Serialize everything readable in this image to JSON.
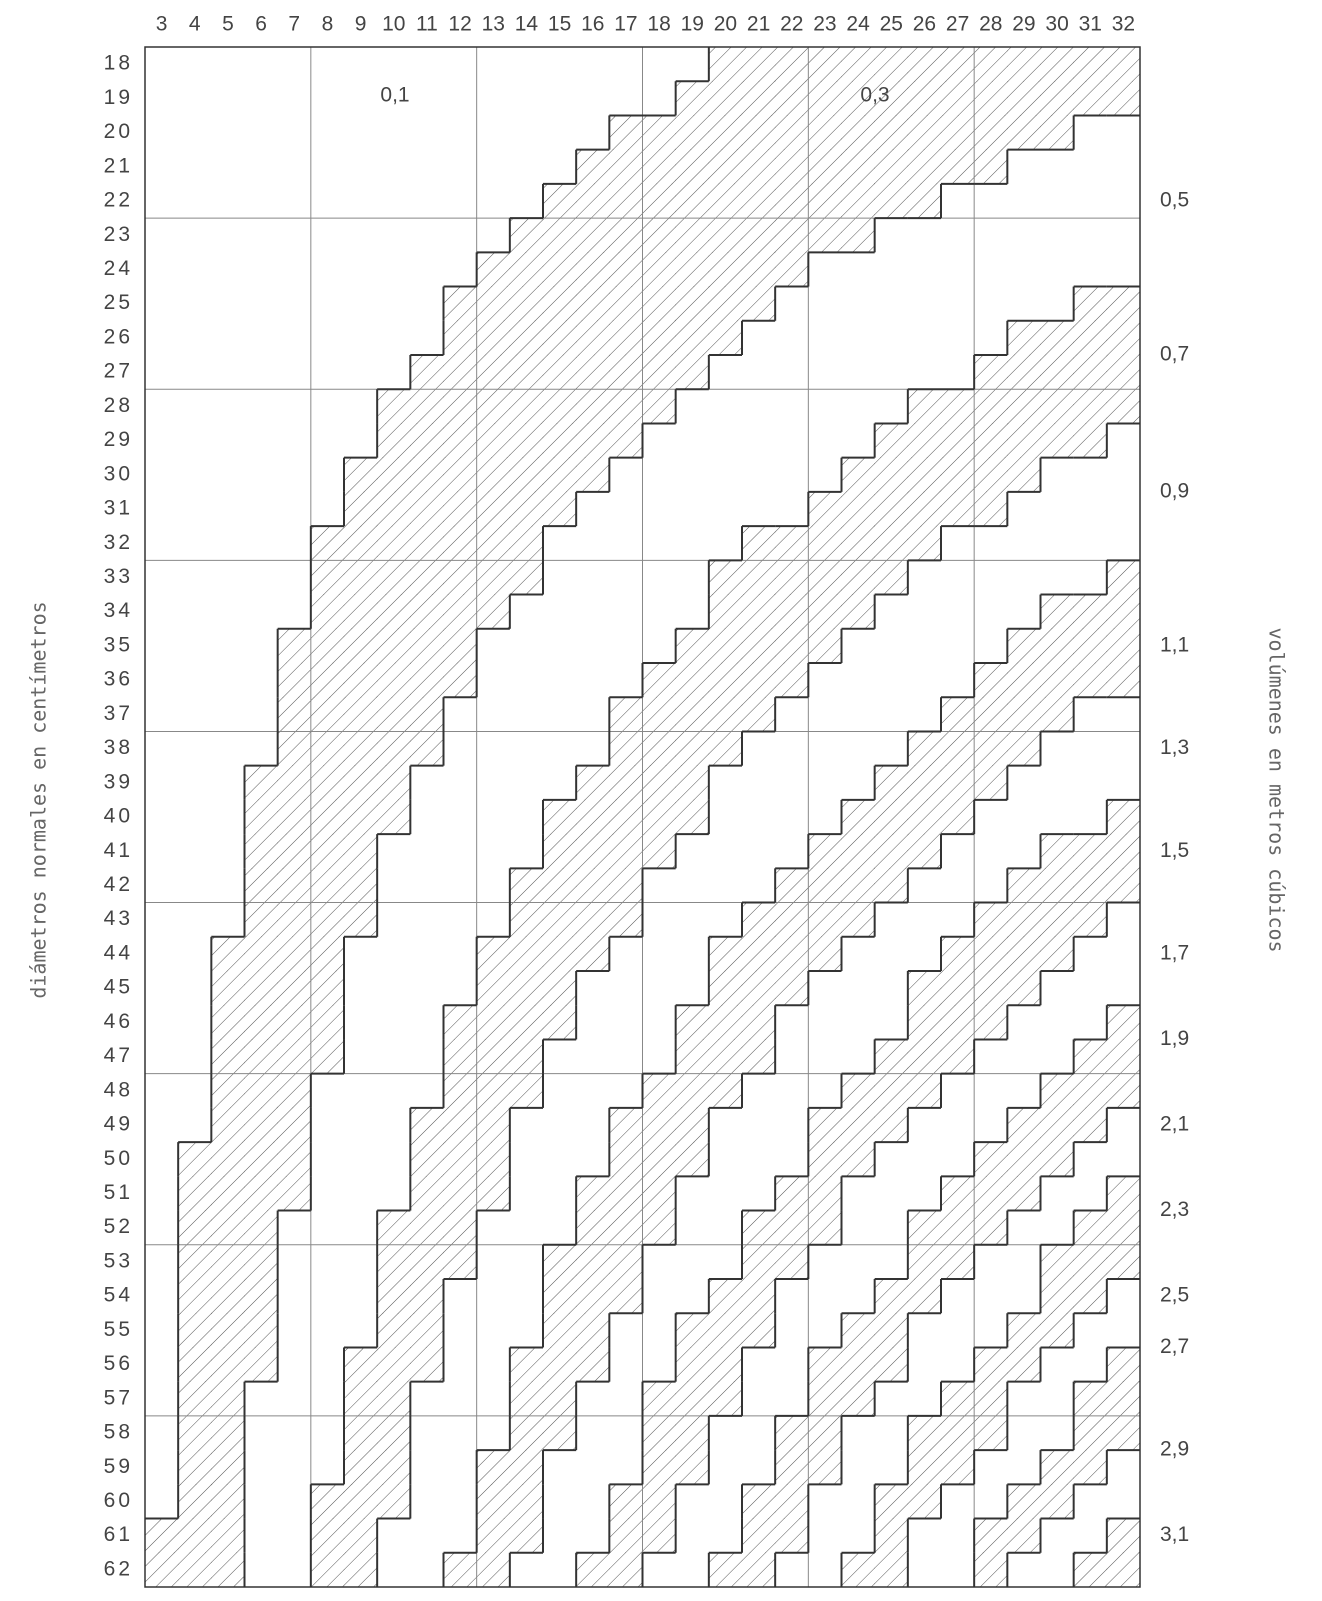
{
  "column_labels": [
    3,
    4,
    5,
    6,
    7,
    8,
    9,
    10,
    11,
    12,
    13,
    14,
    15,
    16,
    17,
    18,
    19,
    20,
    21,
    22,
    23,
    24,
    25,
    26,
    27,
    28,
    29,
    30,
    31,
    32
  ],
  "row_labels": [
    18,
    19,
    20,
    21,
    22,
    23,
    24,
    25,
    26,
    27,
    28,
    29,
    30,
    31,
    32,
    33,
    34,
    35,
    36,
    37,
    38,
    39,
    40,
    41,
    42,
    43,
    44,
    45,
    46,
    47,
    48,
    49,
    50,
    51,
    52,
    53,
    54,
    55,
    56,
    57,
    58,
    59,
    60,
    61,
    62
  ],
  "inner_labels": [
    "0,1",
    "0,3"
  ],
  "volume_labels": [
    "0,5",
    "0,7",
    "0,9",
    "1,1",
    "1,3",
    "1,5",
    "1,7",
    "1,9",
    "2,1",
    "2,3",
    "2,5",
    "2,7",
    "2,9",
    "3,1"
  ],
  "left_title": "diámetros normales en centímetros",
  "right_title": "volúmenes en metros cúbicos"
}
